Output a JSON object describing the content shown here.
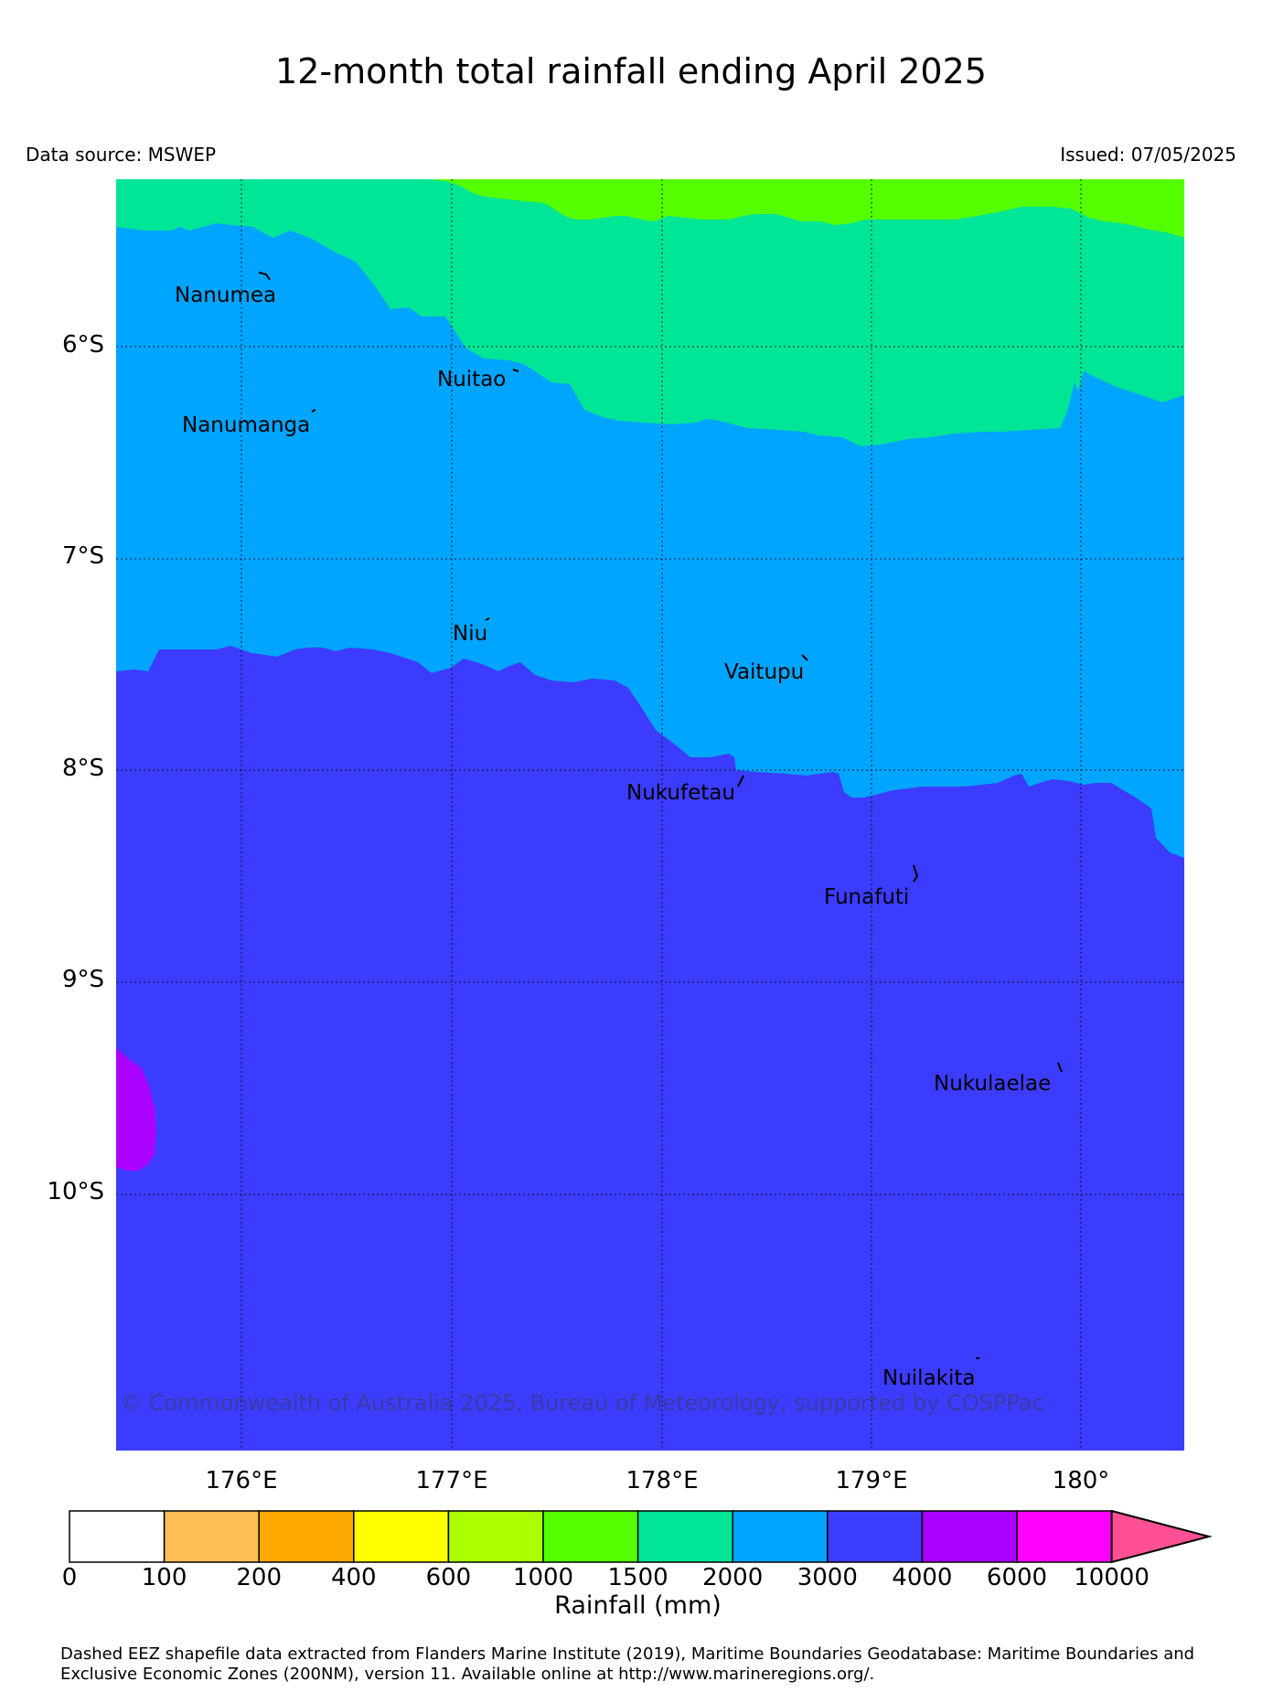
{
  "header": {
    "title": "12-month total rainfall ending April 2025",
    "data_source": "Data source: MSWEP",
    "issued": "Issued: 07/05/2025"
  },
  "map": {
    "copyright": "© Commonwealth of Australia 2025, Bureau of Meteorology, supported by COSPPac",
    "lat_labels": [
      "6°S",
      "7°S",
      "8°S",
      "9°S",
      "10°S"
    ],
    "lon_labels": [
      "176°E",
      "177°E",
      "178°E",
      "179°E",
      "180°"
    ],
    "islands": [
      {
        "name": "Nanumea"
      },
      {
        "name": "Nuitao"
      },
      {
        "name": "Nanumanga"
      },
      {
        "name": "Niu"
      },
      {
        "name": "Vaitupu"
      },
      {
        "name": "Nukufetau"
      },
      {
        "name": "Funafuti"
      },
      {
        "name": "Nukulaelae"
      },
      {
        "name": "Nuilakita"
      }
    ],
    "region_colors": {
      "1000-1500": "#55ff00",
      "1500-2000": "#00e696",
      "2000-3000": "#00a5ff",
      "3000-4000": "#3c3cff",
      "4000-6000": "#aa00ff"
    }
  },
  "colorbar": {
    "title": "Rainfall (mm)",
    "labels": [
      "0",
      "100",
      "200",
      "400",
      "600",
      "1000",
      "1500",
      "2000",
      "3000",
      "4000",
      "6000",
      "10000"
    ],
    "colors": [
      "#ffffff",
      "#ffbe55",
      "#ffaa00",
      "#ffff00",
      "#aaff00",
      "#55ff00",
      "#00e696",
      "#00a5ff",
      "#3c3cff",
      "#aa00ff",
      "#ff00ff",
      "#ff5096"
    ]
  },
  "footnote": "Dashed EEZ shapefile data extracted from Flanders Marine Institute (2019), Maritime Boundaries Geodatabase: Maritime Boundaries and Exclusive Economic Zones (200NM), version 11. Available online at http://www.marineregions.org/."
}
